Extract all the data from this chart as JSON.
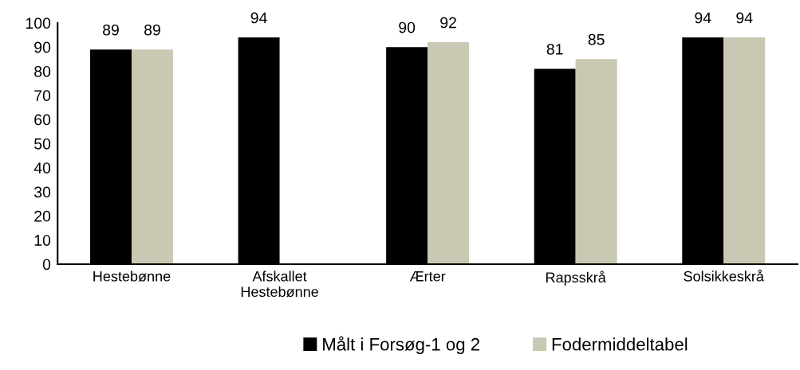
{
  "chart_data": {
    "type": "bar",
    "categories": [
      "Hestebønne",
      "Afskallet\nHestebønne",
      "Ærter",
      "Rapsskrå",
      "Solsikkeskrå"
    ],
    "series": [
      {
        "name": "Målt i Forsøg-1 og 2",
        "color": "#000000",
        "values": [
          89,
          94,
          90,
          81,
          94
        ]
      },
      {
        "name": "Fodermiddeltabel",
        "color": "#c9c8b2",
        "values": [
          89,
          null,
          92,
          85,
          94
        ]
      }
    ],
    "ylim": [
      0,
      100
    ],
    "yticks": [
      0,
      10,
      20,
      30,
      40,
      50,
      60,
      70,
      80,
      90,
      100
    ],
    "data_labels": true,
    "legend": "bottom",
    "grid": false
  }
}
